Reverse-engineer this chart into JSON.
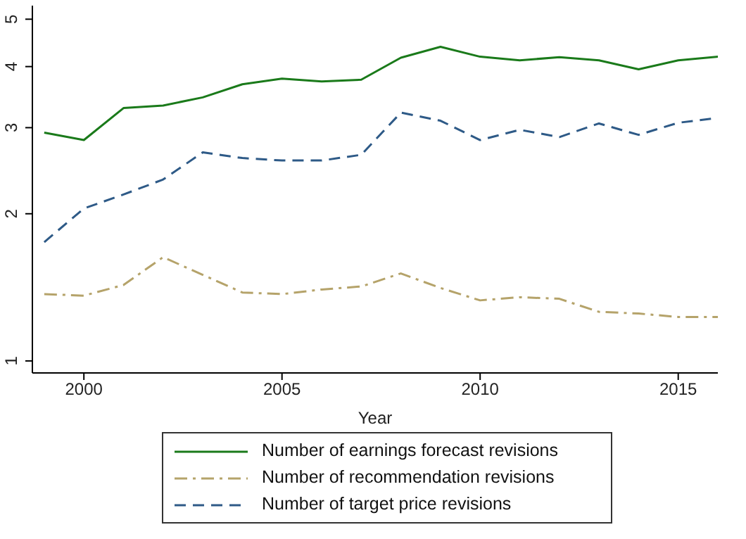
{
  "chart_data": {
    "type": "line",
    "xlabel": "Year",
    "log": "y",
    "grid": false,
    "legend": "bottom",
    "marker": "none",
    "x": [
      1999,
      2000,
      2001,
      2002,
      2003,
      2004,
      2005,
      2006,
      2007,
      2008,
      2009,
      2010,
      2011,
      2012,
      2013,
      2014,
      2015,
      2016
    ],
    "xlim": [
      1998.7,
      2016
    ],
    "xticks": [
      2000,
      2005,
      2010,
      2015
    ],
    "ylim": [
      0.945,
      5.33
    ],
    "yticks": [
      1,
      2,
      3,
      4,
      5
    ],
    "series": [
      {
        "name": "Number of earnings forecast revisions",
        "color": "#1a7a1a",
        "line_style": "solid",
        "values": [
          2.93,
          2.83,
          3.29,
          3.33,
          3.46,
          3.68,
          3.78,
          3.73,
          3.76,
          4.17,
          4.39,
          4.19,
          4.12,
          4.18,
          4.12,
          3.95,
          4.12,
          4.19
        ]
      },
      {
        "name": "Number of recommendation revisions",
        "color": "#b5a36a",
        "line_style": "dashdot",
        "values": [
          1.37,
          1.36,
          1.43,
          1.63,
          1.5,
          1.38,
          1.37,
          1.4,
          1.42,
          1.51,
          1.41,
          1.33,
          1.35,
          1.34,
          1.26,
          1.25,
          1.23,
          1.23
        ]
      },
      {
        "name": "Number of target price revisions",
        "color": "#2e5a87",
        "line_style": "dashed",
        "values": [
          1.75,
          2.05,
          2.19,
          2.35,
          2.67,
          2.6,
          2.57,
          2.57,
          2.64,
          3.22,
          3.1,
          2.83,
          2.97,
          2.87,
          3.06,
          2.9,
          3.07,
          3.14
        ]
      }
    ]
  }
}
